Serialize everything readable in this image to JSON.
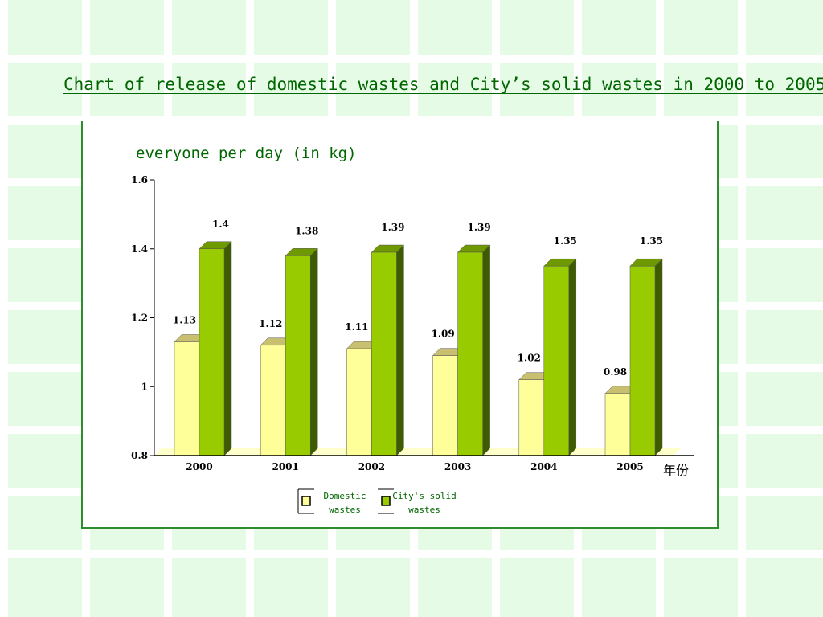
{
  "slide": {
    "title": "Chart of release of domestic wastes and City’s solid wastes in 2000 to  2005"
  },
  "colors": {
    "background": "#e6fbe6",
    "grid_lines": "#ffffff",
    "title": "#006600",
    "panel_border": "#2e8b2e",
    "domestic_front": "#ffff99",
    "domestic_side": "#d8d870",
    "domestic_top": "#c8c070",
    "city_front": "#99cc00",
    "city_side": "#3d5c00",
    "city_top": "#6f9900"
  },
  "chart_data": {
    "type": "bar",
    "title": "everyone per day (in kg)",
    "xlabel": "年份",
    "ylabel": "",
    "categories": [
      "2000",
      "2001",
      "2002",
      "2003",
      "2004",
      "2005"
    ],
    "ylim": [
      0.8,
      1.6
    ],
    "yticks": [
      "0.8",
      "1",
      "1.2",
      "1.4",
      "1.6"
    ],
    "series": [
      {
        "name": "Domestic wastes",
        "values": [
          1.13,
          1.12,
          1.11,
          1.09,
          1.02,
          0.98
        ],
        "labels": [
          "1.13",
          "1.12",
          "1.11",
          "1.09",
          "1.02",
          "0.98"
        ]
      },
      {
        "name": "City's solid wastes",
        "values": [
          1.4,
          1.38,
          1.39,
          1.39,
          1.35,
          1.35
        ],
        "labels": [
          "1.4",
          "1.38",
          "1.39",
          "1.39",
          "1.35",
          "1.35"
        ]
      }
    ],
    "legend": {
      "position": "bottom",
      "items": [
        {
          "line1": "Domestic",
          "line2": "wastes"
        },
        {
          "line1": "City's solid",
          "line2": "wastes"
        }
      ]
    },
    "grid": false
  }
}
